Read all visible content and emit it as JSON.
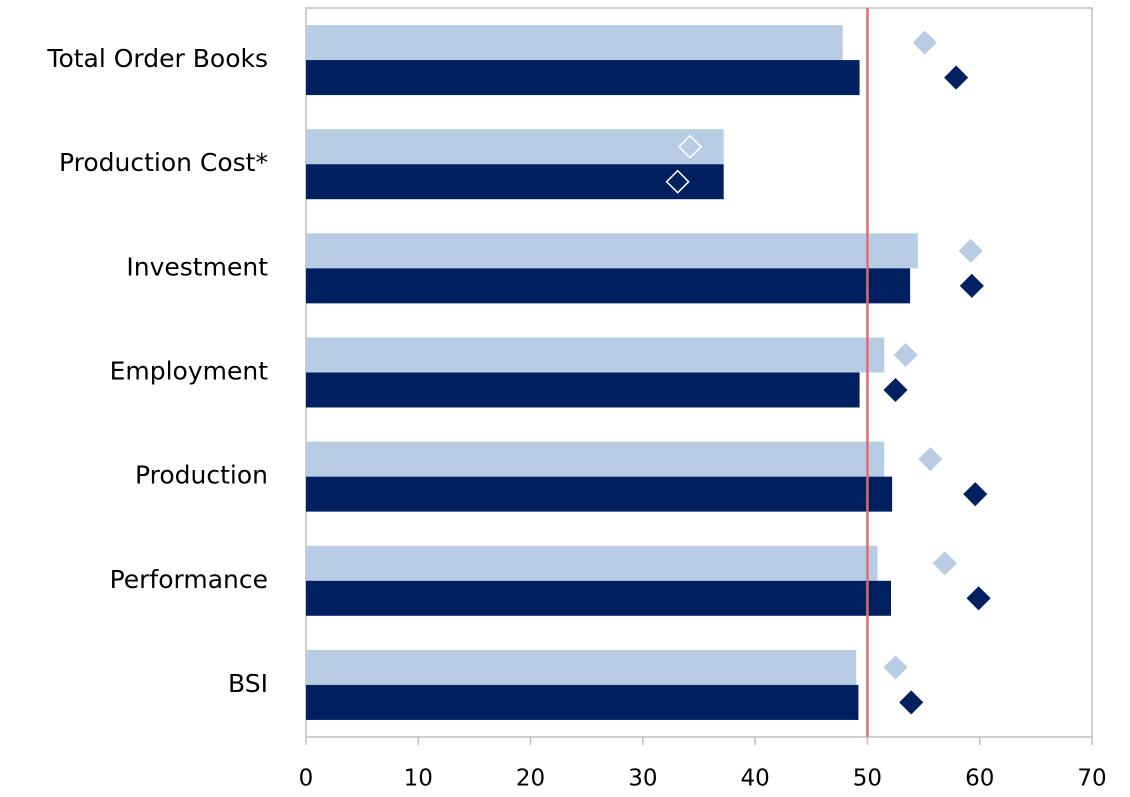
{
  "chart_data": {
    "type": "bar",
    "orientation": "horizontal",
    "categories": [
      "Total Order Books",
      "Production Cost*",
      "Investment",
      "Employment",
      "Production",
      "Performance",
      "BSI"
    ],
    "series": [
      {
        "kind": "bar",
        "color": "#b8cce4",
        "values": [
          47.8,
          37.2,
          54.5,
          51.5,
          51.5,
          50.9,
          49.0
        ]
      },
      {
        "kind": "bar",
        "color": "#002060",
        "values": [
          49.3,
          37.2,
          53.8,
          49.3,
          52.2,
          52.1,
          49.2
        ]
      },
      {
        "kind": "diamond",
        "color": "#b8cce4",
        "values": [
          55.1,
          34.2,
          59.2,
          53.4,
          55.6,
          56.9,
          52.5
        ]
      },
      {
        "kind": "diamond",
        "color": "#002060",
        "values": [
          57.9,
          33.1,
          59.3,
          52.5,
          59.6,
          59.9,
          53.9
        ]
      }
    ],
    "hollow_category_index": 1,
    "reference_line": {
      "value": 50,
      "color": "#e06c75"
    },
    "xlim": [
      0,
      70
    ],
    "xticks": [
      0,
      10,
      20,
      30,
      40,
      50,
      60,
      70
    ],
    "grid": false,
    "frame_color": "#bfbfbf"
  }
}
